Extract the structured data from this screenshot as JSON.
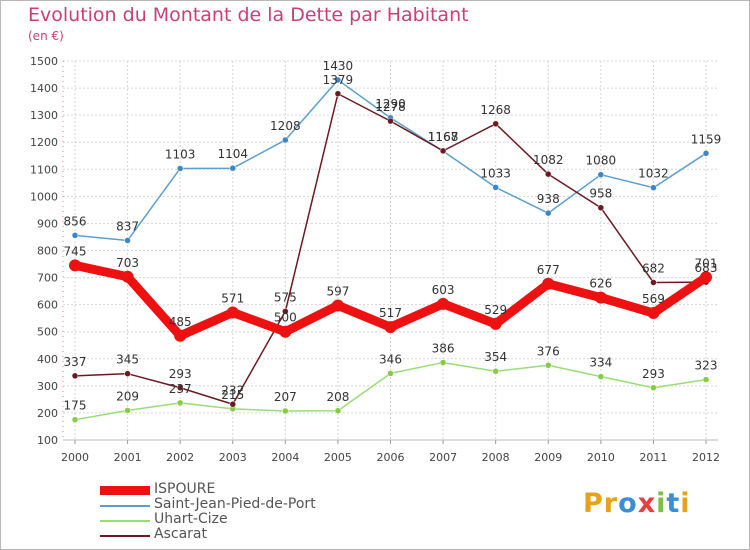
{
  "title": "Evolution du Montant de la Dette par Habitant",
  "unit_label": "(en €)",
  "logo": {
    "text": "Proxiti",
    "letters": [
      "P",
      "r",
      "o",
      "x",
      "i",
      "t",
      "i"
    ],
    "colors": [
      "#e8a21a",
      "#e8a21a",
      "#3a8fd6",
      "#e83e3e",
      "#7cc143",
      "#3a8fd6",
      "#e8a21a"
    ]
  },
  "chart_data": {
    "type": "line",
    "categories": [
      "2000",
      "2001",
      "2002",
      "2003",
      "2004",
      "2005",
      "2006",
      "2007",
      "2008",
      "2009",
      "2010",
      "2011",
      "2012"
    ],
    "ylim": [
      100,
      1500
    ],
    "yticks": [
      100,
      200,
      300,
      400,
      500,
      600,
      700,
      800,
      900,
      1000,
      1100,
      1200,
      1300,
      1400,
      1500
    ],
    "grid": true,
    "legend_position": "bottom-left",
    "series": [
      {
        "name": "ISPOURE",
        "color": "#ee1111",
        "values": [
          745,
          703,
          485,
          571,
          500,
          597,
          517,
          603,
          529,
          677,
          626,
          569,
          701
        ],
        "labels": [
          "745",
          "703",
          "485",
          "571",
          "500",
          "597",
          "517",
          "603",
          "529",
          "677",
          "626",
          "569",
          "701"
        ]
      },
      {
        "name": "Saint-Jean-Pied-de-Port",
        "color": "#5b9fd0",
        "values": [
          856,
          837,
          1103,
          1104,
          1208,
          1430,
          1290,
          1167,
          1033,
          938,
          1080,
          1032,
          1159
        ],
        "labels": [
          "856",
          "837",
          "1103",
          "1104",
          "1208",
          "1430",
          "1290",
          "1167",
          "1033",
          "938",
          "1080",
          "1032",
          "1159"
        ]
      },
      {
        "name": "Uhart-Cize",
        "color": "#99dd77",
        "values": [
          175,
          209,
          237,
          215,
          207,
          208,
          346,
          386,
          354,
          376,
          334,
          293,
          323
        ],
        "labels": [
          "175",
          "209",
          "237",
          "215",
          "207",
          "208",
          "346",
          "386",
          "354",
          "376",
          "334",
          "293",
          "323"
        ]
      },
      {
        "name": "Ascarat",
        "color": "#6b1a22",
        "values": [
          337,
          345,
          293,
          232,
          575,
          1379,
          1278,
          1168,
          1268,
          1082,
          958,
          682,
          683
        ],
        "labels": [
          "337",
          "345",
          "293",
          "232",
          "575",
          "1379",
          "1278",
          "1168",
          "1268",
          "1082",
          "958",
          "682",
          "683"
        ]
      }
    ]
  }
}
